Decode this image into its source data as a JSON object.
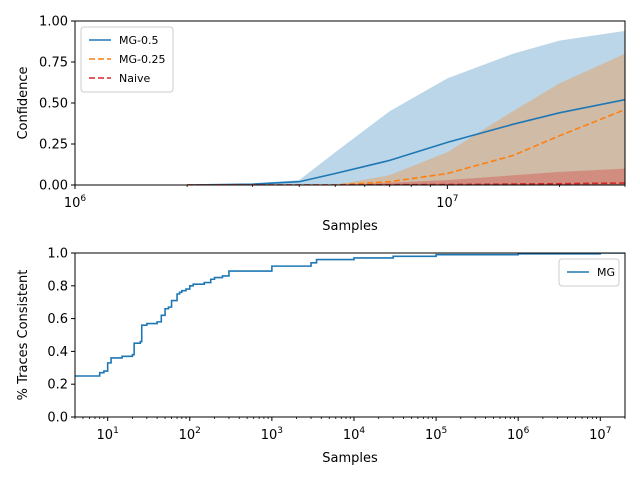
{
  "chart_data": [
    {
      "type": "line",
      "title": "",
      "xlabel": "Samples",
      "ylabel": "Confidence",
      "xscale": "log",
      "xlim": [
        1000000,
        30000000
      ],
      "ylim": [
        0,
        1
      ],
      "xticks": [
        {
          "value": 1000000,
          "base": "10",
          "exp": "6"
        },
        {
          "value": 10000000,
          "base": "10",
          "exp": "7"
        }
      ],
      "yticks": [
        {
          "value": 0.0,
          "label": "0.00"
        },
        {
          "value": 0.25,
          "label": "0.25"
        },
        {
          "value": 0.5,
          "label": "0.50"
        },
        {
          "value": 0.75,
          "label": "0.75"
        },
        {
          "value": 1.0,
          "label": "1.00"
        }
      ],
      "legend_position": "top-left",
      "series": [
        {
          "name": "MG-0.5",
          "color": "#1f77b4",
          "dash": "solid",
          "x": [
            2000000,
            3000000,
            4000000,
            5000000,
            7000000,
            10000000,
            15000000,
            20000000,
            30000000
          ],
          "y": [
            0.0,
            0.005,
            0.02,
            0.07,
            0.15,
            0.26,
            0.37,
            0.44,
            0.52
          ],
          "lower": [
            0.0,
            0.0,
            0.0,
            0.0,
            0.0,
            0.0,
            0.0,
            0.0,
            0.0
          ],
          "upper": [
            0.0,
            0.01,
            0.03,
            0.2,
            0.45,
            0.65,
            0.8,
            0.88,
            0.94
          ]
        },
        {
          "name": "MG-0.25",
          "color": "#ff7f0e",
          "dash": "dashed",
          "x": [
            2000000,
            5000000,
            7000000,
            10000000,
            15000000,
            20000000,
            30000000
          ],
          "y": [
            0.0,
            0.0,
            0.02,
            0.07,
            0.18,
            0.3,
            0.46
          ],
          "lower": [
            0.0,
            0.0,
            0.0,
            0.0,
            0.0,
            0.0,
            0.0
          ],
          "upper": [
            0.0,
            0.0,
            0.06,
            0.2,
            0.45,
            0.62,
            0.8
          ]
        },
        {
          "name": "Naive",
          "color": "#d62728",
          "dash": "dashed",
          "x": [
            2000000,
            5000000,
            10000000,
            20000000,
            30000000
          ],
          "y": [
            0.0,
            0.0,
            0.003,
            0.008,
            0.012
          ],
          "lower": [
            0.0,
            0.0,
            0.0,
            0.0,
            0.0
          ],
          "upper": [
            0.0,
            0.0,
            0.03,
            0.08,
            0.1
          ]
        }
      ]
    },
    {
      "type": "line",
      "title": "",
      "xlabel": "Samples",
      "ylabel": "% Traces Consistent",
      "xscale": "log",
      "xlim": [
        4,
        20000000
      ],
      "ylim": [
        0,
        1
      ],
      "xticks": [
        {
          "value": 10,
          "base": "10",
          "exp": "1"
        },
        {
          "value": 100,
          "base": "10",
          "exp": "2"
        },
        {
          "value": 1000,
          "base": "10",
          "exp": "3"
        },
        {
          "value": 10000,
          "base": "10",
          "exp": "4"
        },
        {
          "value": 100000,
          "base": "10",
          "exp": "5"
        },
        {
          "value": 1000000,
          "base": "10",
          "exp": "6"
        },
        {
          "value": 10000000,
          "base": "10",
          "exp": "7"
        }
      ],
      "yticks": [
        {
          "value": 0.0,
          "label": "0.0"
        },
        {
          "value": 0.2,
          "label": "0.2"
        },
        {
          "value": 0.4,
          "label": "0.4"
        },
        {
          "value": 0.6,
          "label": "0.6"
        },
        {
          "value": 0.8,
          "label": "0.8"
        },
        {
          "value": 1.0,
          "label": "1.0"
        }
      ],
      "legend_position": "top-right",
      "series": [
        {
          "name": "MG",
          "color": "#1f77b4",
          "step": true,
          "x": [
            4,
            8,
            9,
            10,
            11,
            15,
            20,
            21,
            25,
            26,
            30,
            40,
            45,
            50,
            55,
            60,
            70,
            75,
            80,
            90,
            100,
            110,
            150,
            180,
            200,
            250,
            300,
            1000,
            3000,
            3500,
            10000,
            30000,
            100000,
            1000000,
            10000000,
            20000000
          ],
          "y": [
            0.25,
            0.27,
            0.28,
            0.33,
            0.36,
            0.37,
            0.38,
            0.45,
            0.46,
            0.56,
            0.57,
            0.58,
            0.62,
            0.66,
            0.67,
            0.71,
            0.75,
            0.76,
            0.77,
            0.78,
            0.8,
            0.81,
            0.82,
            0.84,
            0.85,
            0.86,
            0.89,
            0.92,
            0.94,
            0.96,
            0.97,
            0.98,
            0.99,
            0.995,
            1.0,
            1.0
          ]
        }
      ]
    }
  ]
}
